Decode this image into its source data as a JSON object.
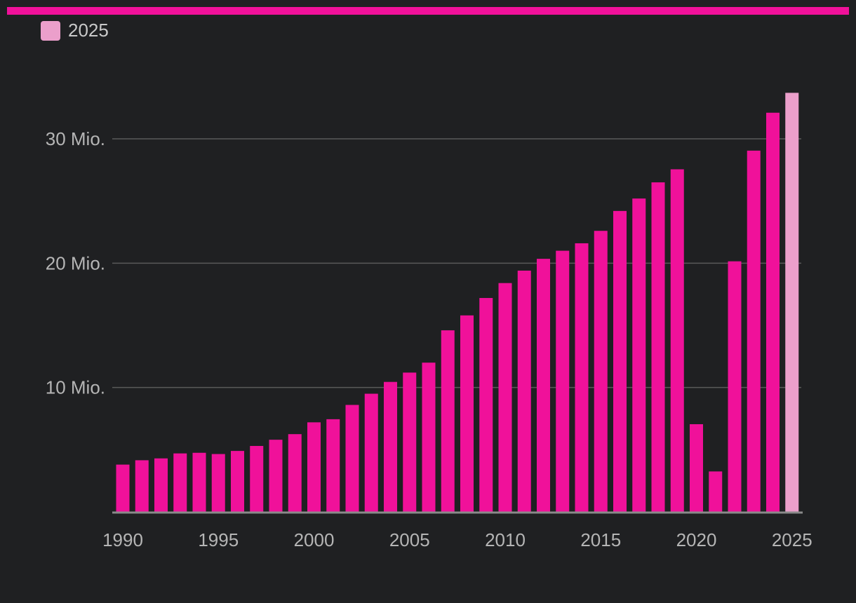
{
  "colors": {
    "background": "#1f2022",
    "accent": "#f0119a",
    "highlight": "#eb9fcb",
    "grid": "#5a5a5a",
    "axis": "#8a8a8a",
    "text": "#b5b5b5"
  },
  "legend": [
    {
      "label": "2025",
      "color": "#eb9fcb"
    }
  ],
  "chart_data": {
    "type": "bar",
    "x": [
      1990,
      1991,
      1992,
      1993,
      1994,
      1995,
      1996,
      1997,
      1998,
      1999,
      2000,
      2001,
      2002,
      2003,
      2004,
      2005,
      2006,
      2007,
      2008,
      2009,
      2010,
      2011,
      2012,
      2013,
      2014,
      2015,
      2016,
      2017,
      2018,
      2019,
      2020,
      2021,
      2022,
      2023,
      2024,
      2025
    ],
    "values": [
      3.8,
      4.15,
      4.3,
      4.7,
      4.75,
      4.65,
      4.9,
      5.3,
      5.8,
      6.25,
      7.2,
      7.45,
      8.6,
      9.5,
      10.45,
      11.2,
      12.0,
      14.6,
      15.8,
      17.2,
      18.4,
      19.4,
      20.35,
      21.0,
      21.6,
      22.6,
      24.2,
      25.2,
      26.5,
      27.55,
      7.05,
      3.25,
      20.15,
      29.05,
      32.1,
      33.7
    ],
    "highlight_x": 2025,
    "ylim": [
      0,
      37.5
    ],
    "yticks": [
      10,
      20,
      30
    ],
    "ytick_labels": [
      "10 Mio.",
      "20 Mio.",
      "30 Mio."
    ],
    "xticks": [
      1990,
      1995,
      2000,
      2005,
      2010,
      2015,
      2020,
      2025
    ],
    "xtick_labels": [
      "1990",
      "1995",
      "2000",
      "2005",
      "2010",
      "2015",
      "2020",
      "2025"
    ],
    "grid": true,
    "legend_position": "top-left"
  }
}
